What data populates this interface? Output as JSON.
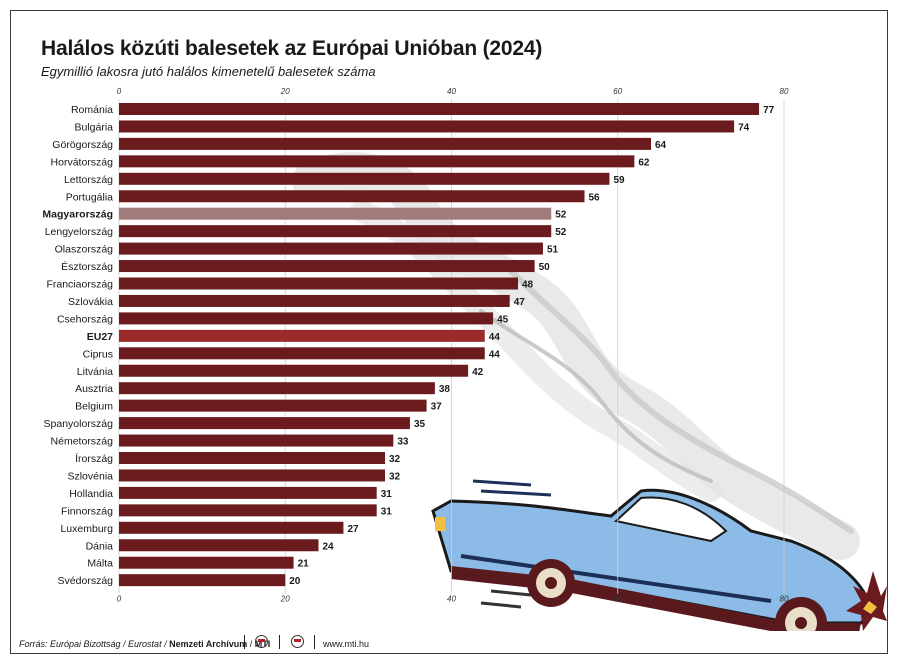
{
  "title": "Halálos közúti balesetek az Európai Unióban (2024)",
  "subtitle": "Egymillió lakosra jutó halálos kimenetelű balesetek száma",
  "colors": {
    "bar": "#6b1a1e",
    "highlight_hu": "#a07b7c",
    "highlight_eu": "#9b2b2b",
    "car_body": "#8bbbe6",
    "car_dark": "#5a1a1d"
  },
  "chart_data": {
    "type": "bar",
    "orientation": "horizontal",
    "categories": [
      "Románia",
      "Bulgária",
      "Görögország",
      "Horvátország",
      "Lettország",
      "Portugália",
      "Magyarország",
      "Lengyelország",
      "Olaszország",
      "Észtország",
      "Franciaország",
      "Szlovákia",
      "Csehország",
      "EU27",
      "Ciprus",
      "Litvánia",
      "Ausztria",
      "Belgium",
      "Spanyolország",
      "Németország",
      "Írország",
      "Szlovénia",
      "Hollandia",
      "Finnország",
      "Luxemburg",
      "Dánia",
      "Málta",
      "Svédország"
    ],
    "values": [
      77,
      74,
      64,
      62,
      59,
      56,
      52,
      52,
      51,
      50,
      48,
      47,
      45,
      44,
      44,
      42,
      38,
      37,
      35,
      33,
      32,
      32,
      31,
      31,
      27,
      24,
      21,
      20
    ],
    "highlighted": [
      "Magyarország",
      "EU27"
    ],
    "xlim": [
      0,
      80
    ],
    "xticks": [
      0,
      20,
      40,
      60,
      80
    ],
    "tick_labels": [
      "0",
      "20",
      "40",
      "60",
      "80"
    ],
    "grid": true,
    "axis_labels_position": "top and bottom"
  },
  "footer": {
    "source_label": "Forrás: Európai Bizottság / Eurostat / ",
    "archive": "Nemzeti Archívum",
    "sep": " / ",
    "agency": "MTI",
    "website": "www.mti.hu"
  }
}
